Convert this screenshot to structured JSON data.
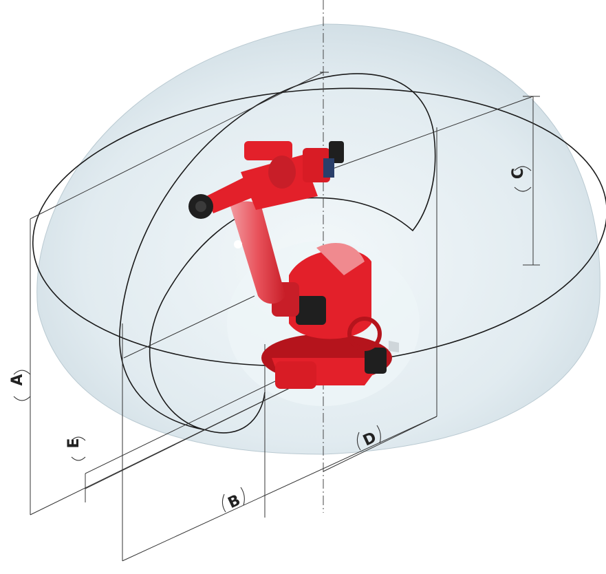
{
  "dimension_labels": {
    "a": "A",
    "b": "B",
    "c": "C",
    "d": "D",
    "e": "E"
  },
  "colors": {
    "robot": "#e3202a",
    "robot_dark": "#b5141c",
    "robot_light": "#f08a8f",
    "envelope_fill": "#dde8ee",
    "motor": "#1f1f1f",
    "lines": "#333333"
  },
  "icons": {
    "robot": "industrial-robot-arm-icon"
  }
}
